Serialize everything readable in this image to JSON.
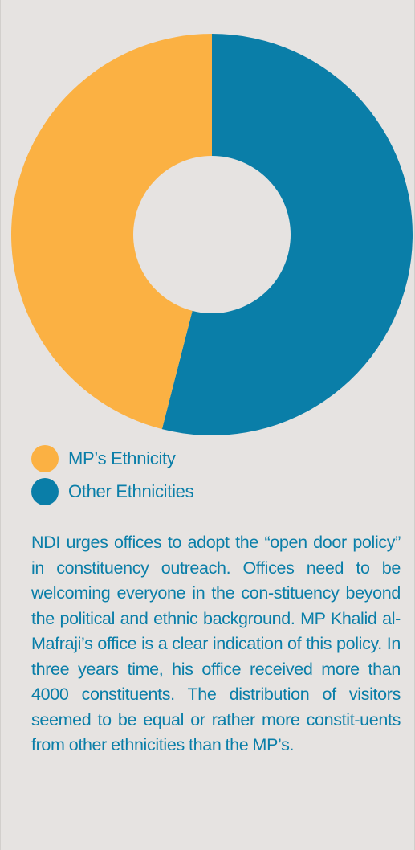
{
  "colors": {
    "background": "#e6e3e1",
    "hole": "#e6e3e1",
    "text": "#0a7ea8"
  },
  "chart_data": {
    "type": "pie",
    "variant": "donut",
    "start_angle_deg": 0,
    "direction": "clockwise",
    "series": [
      {
        "name": "Other Ethnicities",
        "value": 54,
        "color": "#0a7ea8"
      },
      {
        "name": "MP’s Ethnicity",
        "value": 46,
        "color": "#fbb143"
      }
    ],
    "legend_position": "bottom-left"
  },
  "legend": [
    {
      "label": "MP’s Ethnicity",
      "color": "#fbb143"
    },
    {
      "label": "Other Ethnicities",
      "color": "#0a7ea8"
    }
  ],
  "body": {
    "text": "NDI urges offices to adopt the “open door policy” in constituency outreach. Offices need to be welcoming everyone in the con-stituency beyond the political and ethnic background. MP Khalid al-Mafraji’s office is a clear indication of this policy. In three years time, his office received more than 4000 constituents. The distribution of visitors seemed to be equal or rather more constit-uents from other ethnicities than the MP’s."
  }
}
